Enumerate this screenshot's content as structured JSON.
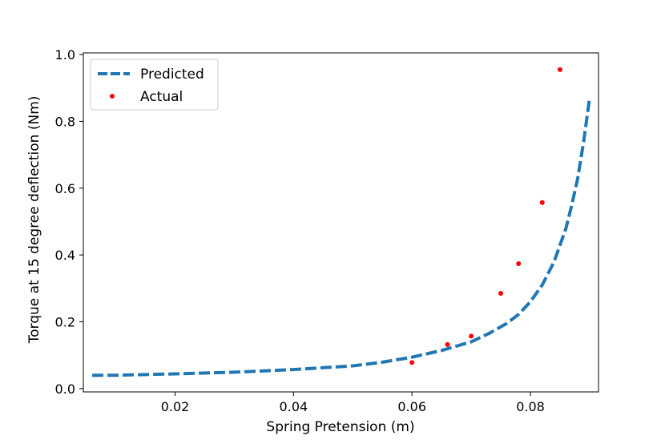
{
  "chart_data": {
    "type": "line",
    "xlabel": "Spring Pretension (m)",
    "ylabel": "Torque at 15 degree deflection (Nm)",
    "xlim": [
      0.0045,
      0.0915
    ],
    "ylim": [
      -0.01,
      1.005
    ],
    "x_ticks": [
      0.02,
      0.04,
      0.06,
      0.08
    ],
    "x_tick_labels": [
      "0.02",
      "0.04",
      "0.06",
      "0.08"
    ],
    "y_ticks": [
      0.0,
      0.2,
      0.4,
      0.6,
      0.8,
      1.0
    ],
    "y_tick_labels": [
      "0.0",
      "0.2",
      "0.4",
      "0.6",
      "0.8",
      "1.0"
    ],
    "grid": false,
    "legend_position": "top-left",
    "series": [
      {
        "name": "Predicted",
        "style": "dashed-line",
        "color": "#1f77b4",
        "x": [
          0.006,
          0.01,
          0.02,
          0.03,
          0.04,
          0.05,
          0.055,
          0.06,
          0.065,
          0.07,
          0.073,
          0.076,
          0.078,
          0.08,
          0.082,
          0.084,
          0.086,
          0.087,
          0.088,
          0.089,
          0.09
        ],
        "y": [
          0.04,
          0.04,
          0.044,
          0.049,
          0.057,
          0.068,
          0.079,
          0.094,
          0.114,
          0.14,
          0.165,
          0.195,
          0.222,
          0.26,
          0.31,
          0.38,
          0.48,
          0.55,
          0.63,
          0.74,
          0.87
        ]
      },
      {
        "name": "Actual",
        "style": "points",
        "color": "#ff0000",
        "x": [
          0.06,
          0.066,
          0.07,
          0.075,
          0.078,
          0.082,
          0.085
        ],
        "y": [
          0.078,
          0.132,
          0.157,
          0.285,
          0.374,
          0.557,
          0.955
        ]
      }
    ]
  }
}
